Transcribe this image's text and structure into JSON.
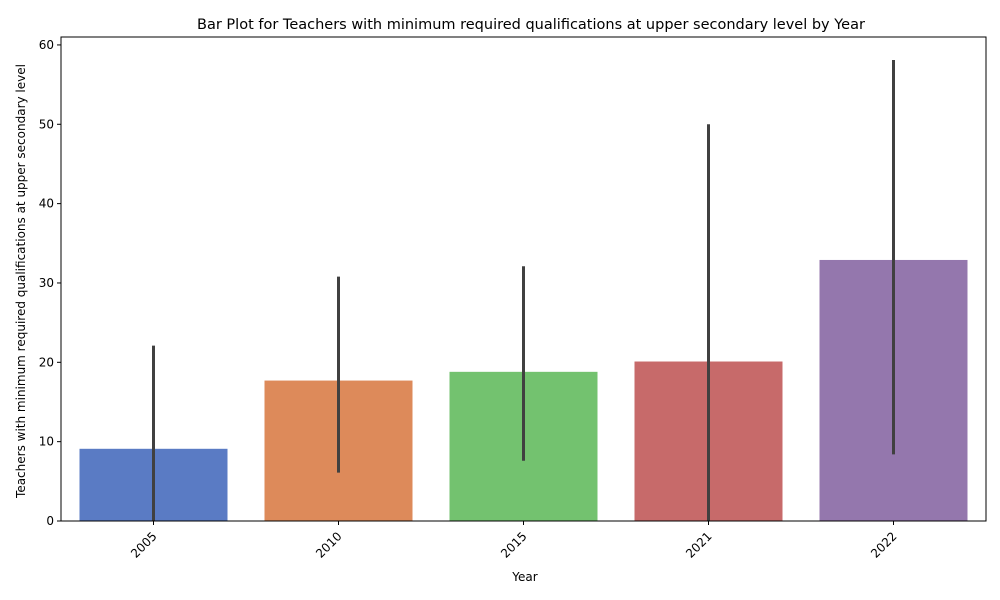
{
  "chart_data": {
    "type": "bar",
    "title": "Bar Plot for Teachers with minimum required qualifications at upper secondary level by Year",
    "xlabel": "Year",
    "ylabel": "Teachers with minimum required qualifications at upper secondary level",
    "categories": [
      "2005",
      "2010",
      "2015",
      "2021",
      "2022"
    ],
    "values": [
      9.1,
      17.7,
      18.8,
      20.1,
      32.9
    ],
    "error_low": [
      0,
      6.1,
      7.6,
      0,
      8.4
    ],
    "error_high": [
      22.1,
      30.8,
      32.1,
      50.0,
      58.1
    ],
    "colors": [
      "#5a7bc4",
      "#dd8a5a",
      "#73c26f",
      "#c76a6a",
      "#9477ad"
    ],
    "error_color": "#404040",
    "ylim": [
      0,
      61
    ],
    "yticks": [
      0,
      10,
      20,
      30,
      40,
      50,
      60
    ],
    "xtick_rotation": 45,
    "grid": false,
    "legend": "none"
  }
}
